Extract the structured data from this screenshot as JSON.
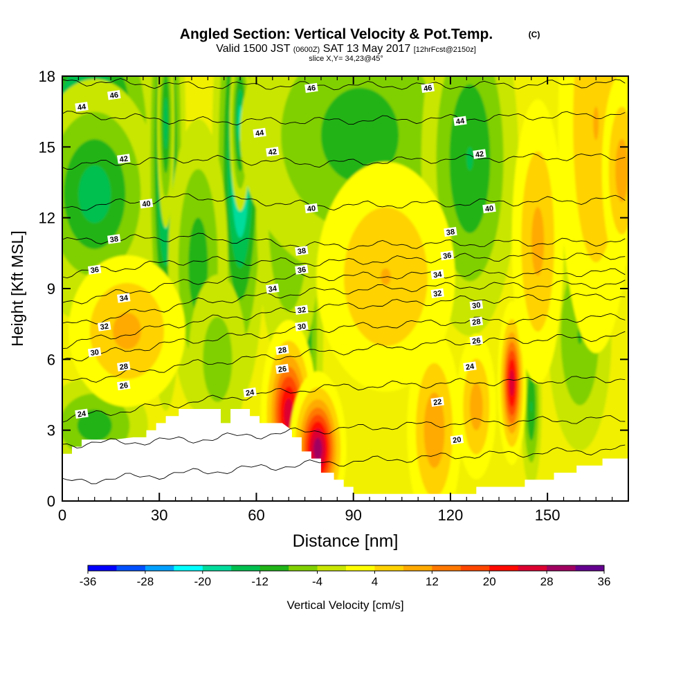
{
  "chart_data": {
    "type": "heatmap",
    "title": {
      "main": "Angled Section: Vertical Velocity & Pot.Temp.",
      "main_suffix": "(C)",
      "valid_prefix": "Valid 1500 JST",
      "valid_zulu": "(0600Z)",
      "valid_date": "SAT 13 May 2017",
      "valid_fcst": "[12hrFcst@2150z]",
      "slice": "slice X,Y= 34,23@45°"
    },
    "xlabel": "Distance [nm]",
    "ylabel": "Height [Kft MSL]",
    "xlim": [
      0,
      175
    ],
    "ylim": [
      0,
      18
    ],
    "x_ticks": [
      0,
      30,
      60,
      90,
      120,
      150
    ],
    "y_ticks": [
      0,
      3,
      6,
      9,
      12,
      15,
      18
    ],
    "x_tick_labels": [
      "0",
      "30",
      "60",
      "90",
      "120",
      "150"
    ],
    "y_tick_labels": [
      "0",
      "3",
      "6",
      "9",
      "12",
      "15",
      "18"
    ],
    "colorbar": {
      "label": "Vertical Velocity [cm/s]",
      "tick_labels": [
        "-36",
        "-28",
        "-20",
        "-12",
        "-4",
        "4",
        "12",
        "20",
        "28",
        "36"
      ],
      "levels": [
        -36,
        -32,
        -28,
        -24,
        -20,
        -16,
        -12,
        -8,
        -4,
        0,
        4,
        8,
        12,
        16,
        20,
        24,
        28,
        32,
        36
      ],
      "colors": [
        "#0000ff",
        "#0050ff",
        "#00a0ff",
        "#00ffff",
        "#00dc9c",
        "#00c050",
        "#20b418",
        "#80d000",
        "#c8e600",
        "#ffff00",
        "#ffd200",
        "#ffaa00",
        "#ff7800",
        "#ff4600",
        "#ff0a00",
        "#dc0030",
        "#a00060",
        "#640090"
      ]
    },
    "terrain": [
      [
        0,
        2.0
      ],
      [
        3,
        2.0
      ],
      [
        3,
        2.3
      ],
      [
        6,
        2.3
      ],
      [
        6,
        2.6
      ],
      [
        10,
        2.6
      ],
      [
        16,
        2.6
      ],
      [
        22,
        2.7
      ],
      [
        26,
        2.7
      ],
      [
        26,
        3.0
      ],
      [
        29,
        3.0
      ],
      [
        29,
        3.3
      ],
      [
        32,
        3.3
      ],
      [
        32,
        3.6
      ],
      [
        36,
        3.6
      ],
      [
        36,
        3.9
      ],
      [
        42,
        3.9
      ],
      [
        45,
        3.9
      ],
      [
        49,
        3.9
      ],
      [
        49,
        3.3
      ],
      [
        52,
        3.3
      ],
      [
        52,
        3.9
      ],
      [
        58,
        3.9
      ],
      [
        58,
        3.6
      ],
      [
        61,
        3.6
      ],
      [
        61,
        3.3
      ],
      [
        68,
        3.3
      ],
      [
        71,
        3.0
      ],
      [
        71,
        2.7
      ],
      [
        74,
        2.7
      ],
      [
        74,
        2.1
      ],
      [
        77,
        2.1
      ],
      [
        77,
        1.8
      ],
      [
        80,
        1.8
      ],
      [
        80,
        1.2
      ],
      [
        84,
        1.2
      ],
      [
        84,
        0.9
      ],
      [
        87,
        0.9
      ],
      [
        87,
        0.6
      ],
      [
        90,
        0.6
      ],
      [
        90,
        0.3
      ],
      [
        95,
        0.3
      ],
      [
        100,
        0.3
      ],
      [
        110,
        0.3
      ],
      [
        120,
        0.3
      ],
      [
        128,
        0.3
      ],
      [
        128,
        0.6
      ],
      [
        143,
        0.6
      ],
      [
        143,
        0.9
      ],
      [
        152,
        0.9
      ],
      [
        152,
        1.2
      ],
      [
        159,
        1.2
      ],
      [
        159,
        1.5
      ],
      [
        167,
        1.5
      ],
      [
        167,
        1.8
      ],
      [
        175,
        1.8
      ]
    ],
    "w_features": [
      {
        "x": 8,
        "y": 15.2,
        "sx": 10,
        "sy": 3.2,
        "a": -21
      },
      {
        "x": 10,
        "y": 13.0,
        "sx": 9,
        "sy": 2.2,
        "a": -14
      },
      {
        "x": 32,
        "y": 14.5,
        "sx": 2.6,
        "sy": 4.5,
        "a": -20
      },
      {
        "x": 32,
        "y": 16.0,
        "sx": 1.2,
        "sy": 2.0,
        "a": -14
      },
      {
        "x": 55,
        "y": 14.5,
        "sx": 3.6,
        "sy": 4.2,
        "a": -22
      },
      {
        "x": 55,
        "y": 16.0,
        "sx": 1.4,
        "sy": 1.6,
        "a": -18
      },
      {
        "x": 42,
        "y": 10.0,
        "sx": 4.5,
        "sy": 3.0,
        "a": -10
      },
      {
        "x": 74,
        "y": 7.0,
        "sx": 3.0,
        "sy": 3.0,
        "a": -14
      },
      {
        "x": 70,
        "y": 12.5,
        "sx": 5.0,
        "sy": 3.5,
        "a": -9
      },
      {
        "x": 92,
        "y": 15.5,
        "sx": 18,
        "sy": 3.0,
        "a": -10
      },
      {
        "x": 126,
        "y": 14.5,
        "sx": 7,
        "sy": 3.5,
        "a": -12
      },
      {
        "x": 160,
        "y": 7.0,
        "sx": 5,
        "sy": 2.5,
        "a": -8
      },
      {
        "x": 145,
        "y": 4.0,
        "sx": 1.5,
        "sy": 1.6,
        "a": -12
      },
      {
        "x": 10,
        "y": 3.2,
        "sx": 8,
        "sy": 1.0,
        "a": -10
      },
      {
        "x": 48,
        "y": 6.0,
        "sx": 5,
        "sy": 2.0,
        "a": -6
      },
      {
        "x": 70,
        "y": 3.7,
        "sx": 3.5,
        "sy": 1.6,
        "a": 26
      },
      {
        "x": 79,
        "y": 2.2,
        "sx": 3.5,
        "sy": 1.3,
        "a": 30
      },
      {
        "x": 20,
        "y": 7.2,
        "sx": 9,
        "sy": 1.6,
        "a": 9
      },
      {
        "x": 100,
        "y": 9.5,
        "sx": 11,
        "sy": 2.5,
        "a": 8
      },
      {
        "x": 115,
        "y": 3.0,
        "sx": 4,
        "sy": 2.0,
        "a": 11
      },
      {
        "x": 128,
        "y": 4.0,
        "sx": 3,
        "sy": 1.5,
        "a": 10
      },
      {
        "x": 139,
        "y": 5.0,
        "sx": 1.8,
        "sy": 1.4,
        "a": 26
      },
      {
        "x": 165,
        "y": 16.0,
        "sx": 6,
        "sy": 5.0,
        "a": 8
      },
      {
        "x": 173,
        "y": 14.0,
        "sx": 3,
        "sy": 2.0,
        "a": 10
      },
      {
        "x": 147,
        "y": 11.0,
        "sx": 4,
        "sy": 3.0,
        "a": 9
      }
    ],
    "theta_isentropes": [
      {
        "value": 20,
        "h": [
          0.8,
          1.2,
          1.6,
          1.9,
          2.2
        ]
      },
      {
        "value": 22,
        "h": [
          2.4,
          2.6,
          3.0,
          3.3,
          3.5
        ]
      },
      {
        "value": 24,
        "h": [
          3.5,
          4.2,
          4.8,
          5.0,
          5.2
        ]
      },
      {
        "value": 26,
        "h": [
          5.0,
          5.8,
          6.3,
          6.7,
          7.0
        ]
      },
      {
        "value": 28,
        "h": [
          6.0,
          6.8,
          7.3,
          7.6,
          7.8
        ]
      },
      {
        "value": 30,
        "h": [
          6.6,
          7.6,
          8.2,
          8.5,
          8.7
        ]
      },
      {
        "value": 32,
        "h": [
          7.4,
          8.4,
          8.9,
          9.1,
          9.2
        ]
      },
      {
        "value": 34,
        "h": [
          8.4,
          9.3,
          9.5,
          9.6,
          9.7
        ]
      },
      {
        "value": 36,
        "h": [
          9.6,
          10.2,
          10.1,
          10.3,
          10.4
        ]
      },
      {
        "value": 38,
        "h": [
          11.0,
          11.2,
          10.8,
          10.9,
          11.0
        ]
      },
      {
        "value": 40,
        "h": [
          12.4,
          12.9,
          12.5,
          12.6,
          12.8
        ]
      },
      {
        "value": 42,
        "h": [
          14.2,
          14.5,
          14.3,
          14.5,
          14.6
        ]
      },
      {
        "value": 44,
        "h": [
          16.4,
          16.1,
          16.1,
          16.2,
          16.4
        ]
      },
      {
        "value": 46,
        "h": [
          17.8,
          17.6,
          17.6,
          17.6,
          17.7
        ]
      }
    ],
    "theta_labels": [
      {
        "value": 46,
        "x": 16,
        "y": 17.2
      },
      {
        "value": 46,
        "x": 77,
        "y": 17.5
      },
      {
        "value": 46,
        "x": 113,
        "y": 17.5
      },
      {
        "value": 44,
        "x": 6,
        "y": 16.7
      },
      {
        "value": 44,
        "x": 61,
        "y": 15.6
      },
      {
        "value": 44,
        "x": 123,
        "y": 16.1
      },
      {
        "value": 42,
        "x": 19,
        "y": 14.5
      },
      {
        "value": 42,
        "x": 65,
        "y": 14.8
      },
      {
        "value": 42,
        "x": 129,
        "y": 14.7
      },
      {
        "value": 40,
        "x": 26,
        "y": 12.6
      },
      {
        "value": 40,
        "x": 77,
        "y": 12.4
      },
      {
        "value": 40,
        "x": 132,
        "y": 12.4
      },
      {
        "value": 38,
        "x": 16,
        "y": 11.1
      },
      {
        "value": 38,
        "x": 74,
        "y": 10.6
      },
      {
        "value": 38,
        "x": 120,
        "y": 11.4
      },
      {
        "value": 36,
        "x": 10,
        "y": 9.8
      },
      {
        "value": 36,
        "x": 74,
        "y": 9.8
      },
      {
        "value": 36,
        "x": 119,
        "y": 10.4
      },
      {
        "value": 34,
        "x": 19,
        "y": 8.6
      },
      {
        "value": 34,
        "x": 65,
        "y": 9.0
      },
      {
        "value": 34,
        "x": 116,
        "y": 9.6
      },
      {
        "value": 32,
        "x": 13,
        "y": 7.4
      },
      {
        "value": 32,
        "x": 74,
        "y": 8.1
      },
      {
        "value": 32,
        "x": 116,
        "y": 8.8
      },
      {
        "value": 30,
        "x": 10,
        "y": 6.3
      },
      {
        "value": 30,
        "x": 74,
        "y": 7.4
      },
      {
        "value": 30,
        "x": 128,
        "y": 8.3
      },
      {
        "value": 28,
        "x": 19,
        "y": 5.7
      },
      {
        "value": 28,
        "x": 68,
        "y": 6.4
      },
      {
        "value": 28,
        "x": 128,
        "y": 7.6
      },
      {
        "value": 26,
        "x": 19,
        "y": 4.9
      },
      {
        "value": 26,
        "x": 68,
        "y": 5.6
      },
      {
        "value": 26,
        "x": 128,
        "y": 6.8
      },
      {
        "value": 24,
        "x": 6,
        "y": 3.7
      },
      {
        "value": 24,
        "x": 58,
        "y": 4.6
      },
      {
        "value": 24,
        "x": 126,
        "y": 5.7
      },
      {
        "value": 22,
        "x": 116,
        "y": 4.2
      },
      {
        "value": 20,
        "x": 122,
        "y": 2.6
      }
    ]
  }
}
